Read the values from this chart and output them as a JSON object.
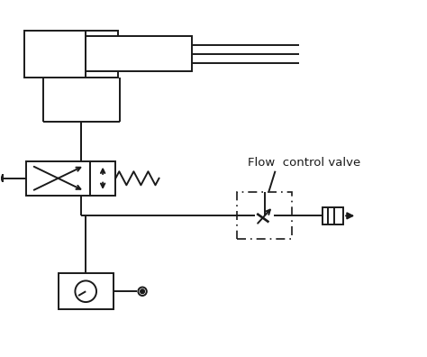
{
  "bg_color": "#ffffff",
  "line_color": "#1a1a1a",
  "lw": 1.4,
  "label_flow_control": "Flow  control valve",
  "label_font_size": 9.5,
  "fig_width": 4.74,
  "fig_height": 3.96,
  "dpi": 100,
  "xlim": [
    0,
    10
  ],
  "ylim": [
    0,
    8.35
  ]
}
